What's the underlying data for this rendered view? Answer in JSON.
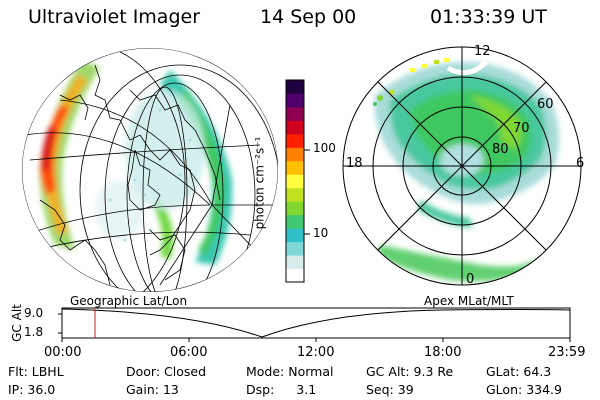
{
  "header": {
    "instrument": "Ultraviolet Imager",
    "date": "14 Sep 00",
    "time": "01:33:39 UT"
  },
  "colorbar": {
    "unit_label": "photon cm⁻²s⁻¹",
    "tick_labels": [
      "100",
      "10"
    ],
    "colors": [
      "#ffffff",
      "#d8ecec",
      "#7fd8d8",
      "#30c0c8",
      "#40c870",
      "#80d830",
      "#c0e020",
      "#ffff40",
      "#ffc000",
      "#ff8000",
      "#ff2000",
      "#d00020",
      "#900050",
      "#50006a",
      "#200040"
    ]
  },
  "polar_plot": {
    "mlt_labels": {
      "top": "12",
      "left": "18",
      "right": "6",
      "bottom": "0"
    },
    "lat_labels": [
      "60",
      "70",
      "80"
    ]
  },
  "projection_labels": {
    "left": "Geographic Lat/Lon",
    "right": "Apex MLat/MLT"
  },
  "altitude_panel": {
    "axis_label": "GC Alt",
    "y_ticks": [
      "9.0",
      "1.8"
    ],
    "x_ticks": [
      "00:00",
      "06:00",
      "12:00",
      "18:00",
      "23:59"
    ],
    "current_time_fraction": 0.065
  },
  "info": {
    "row1": [
      {
        "k": "Flt:",
        "v": "LBHL"
      },
      {
        "k": "Door:",
        "v": "Closed"
      },
      {
        "k": "Mode:",
        "v": "Normal"
      },
      {
        "k": "GC Alt:",
        "v": "9.3 Re"
      },
      {
        "k": "GLat:",
        "v": "64.3"
      }
    ],
    "row2": [
      {
        "k": "IP:",
        "v": "36.0"
      },
      {
        "k": "Gain:",
        "v": "13"
      },
      {
        "k": "Dsp:",
        "v": "3.1"
      },
      {
        "k": "Seq:",
        "v": "39"
      },
      {
        "k": "GLon:",
        "v": "334.9"
      }
    ]
  }
}
